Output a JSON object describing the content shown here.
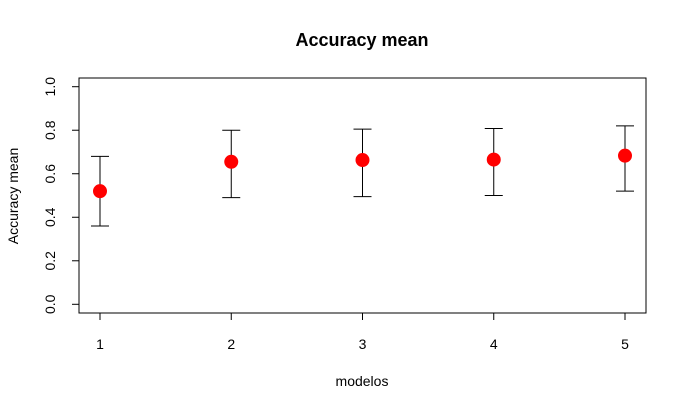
{
  "chart_data": {
    "type": "scatter",
    "title": "Accuracy mean",
    "xlabel": "modelos",
    "ylabel": "Accuracy mean",
    "x": [
      1,
      2,
      3,
      4,
      5
    ],
    "x_ticks": [
      "1",
      "2",
      "3",
      "4",
      "5"
    ],
    "y_ticks": [
      "0.0",
      "0.2",
      "0.4",
      "0.6",
      "0.8",
      "1.0"
    ],
    "xlim": [
      0.84,
      5.16
    ],
    "ylim": [
      -0.04,
      1.04
    ],
    "series": [
      {
        "values": [
          0.52,
          0.655,
          0.663,
          0.665,
          0.683
        ],
        "lower": [
          0.36,
          0.49,
          0.495,
          0.5,
          0.52
        ],
        "upper": [
          0.68,
          0.8,
          0.805,
          0.808,
          0.82
        ]
      }
    ],
    "point_color": "#ff0000",
    "errorbar_color": "#000000",
    "grid": false,
    "legend": "none"
  }
}
